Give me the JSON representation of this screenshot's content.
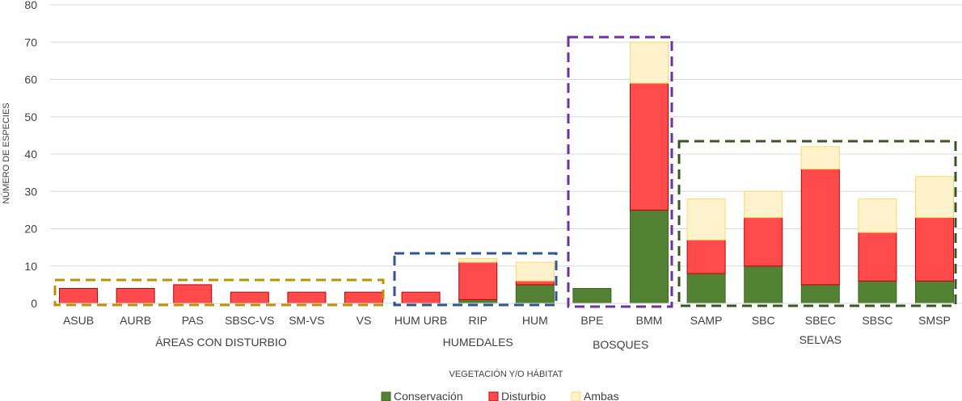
{
  "chart_data": {
    "type": "bar",
    "stacked": true,
    "title": "",
    "xlabel": "VEGETACIÓN Y/O HÁBITAT",
    "ylabel": "NÚMERO DE ESPECIES",
    "ylim": [
      0,
      80
    ],
    "yticks": [
      0,
      10,
      20,
      30,
      40,
      50,
      60,
      70,
      80
    ],
    "grid": true,
    "legend_position": "bottom",
    "categories": [
      "ASUB",
      "AURB",
      "PAS",
      "SBSC-VS",
      "SM-VS",
      "VS",
      "HUM URB",
      "RIP",
      "HUM",
      "BPE",
      "BMM",
      "SAMP",
      "SBC",
      "SBEC",
      "SBSC",
      "SMSP"
    ],
    "series": [
      {
        "name": "Conservación",
        "color": "#548235",
        "values": [
          0,
          0,
          0,
          0,
          0,
          0,
          0,
          1,
          5,
          4,
          25,
          8,
          10,
          5,
          6,
          6
        ]
      },
      {
        "name": "Disturbio",
        "color": "#ff4b4b",
        "values": [
          4,
          4,
          5,
          3,
          3,
          3,
          3,
          10,
          1,
          0,
          34,
          9,
          13,
          31,
          13,
          17
        ]
      },
      {
        "name": "Ambas",
        "color": "#fff2cc",
        "values": [
          0,
          0,
          0,
          0,
          0,
          0,
          0,
          1,
          5,
          0,
          11,
          11,
          7,
          6,
          9,
          11
        ]
      }
    ],
    "groups": [
      {
        "label": "ÁREAS CON DISTURBIO",
        "categories": [
          "ASUB",
          "AURB",
          "PAS",
          "SBSC-VS",
          "SM-VS",
          "VS"
        ],
        "color": "#bf9000"
      },
      {
        "label": "HUMEDALES",
        "categories": [
          "HUM URB",
          "RIP",
          "HUM"
        ],
        "color": "#2f5597"
      },
      {
        "label": "BOSQUES",
        "categories": [
          "BPE",
          "BMM"
        ],
        "color": "#7030a0"
      },
      {
        "label": "SELVAS",
        "categories": [
          "SAMP",
          "SBC",
          "SBEC",
          "SBSC",
          "SMSP"
        ],
        "color": "#375623"
      }
    ]
  }
}
